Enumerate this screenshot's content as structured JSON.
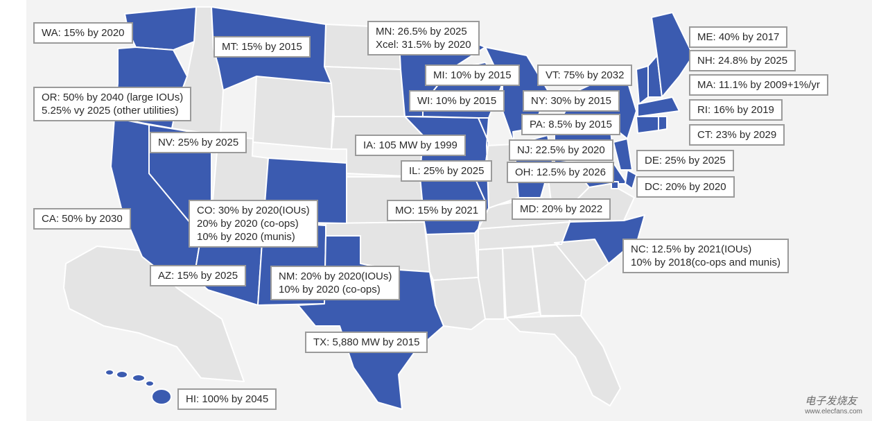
{
  "colors": {
    "policy_state": "#3b5bb0",
    "other_state": "#e4e4e4",
    "state_border": "#ffffff",
    "label_border": "#9a9a9a"
  },
  "labels": {
    "wa": "WA: 15% by 2020",
    "mt": "MT: 15% by 2015",
    "mn": "MN: 26.5% by 2025\nXcel: 31.5% by 2020",
    "me": "ME: 40% by 2017",
    "nh": "NH: 24.8% by 2025",
    "mi": "MI: 10% by 2015",
    "vt": "VT: 75% by 2032",
    "ma": "MA: 11.1% by 2009+1%/yr",
    "or": "OR: 50% by 2040 (large IOUs)\n5.25% vy 2025 (other utilities)",
    "wi": "WI: 10% by 2015",
    "ny": "NY: 30% by 2015",
    "ri": "RI: 16% by 2019",
    "pa": "PA: 8.5% by 2015",
    "ct": "CT: 23% by 2029",
    "nv": "NV: 25% by 2025",
    "ia": "IA: 105 MW by 1999",
    "nj": "NJ: 22.5% by 2020",
    "de": "DE: 25% by 2025",
    "il": "IL: 25% by 2025",
    "oh": "OH: 12.5% by 2026",
    "dc": "DC: 20% by 2020",
    "ca": "CA: 50% by 2030",
    "co": "CO: 30% by 2020(IOUs)\n20% by 2020 (co-ops)\n10% by 2020 (munis)",
    "mo": "MO: 15% by 2021",
    "md": "MD: 20% by 2022",
    "nc": "NC: 12.5% by 2021(IOUs)\n10% by 2018(co-ops and munis)",
    "az": "AZ: 15% by 2025",
    "nm": "NM: 20% by 2020(IOUs)\n10% by 2020 (co-ops)",
    "tx": "TX: 5,880 MW by 2015",
    "hi": "HI: 100% by 2045"
  },
  "watermark": {
    "name": "电子发烧友",
    "url": "www.elecfans.com"
  }
}
